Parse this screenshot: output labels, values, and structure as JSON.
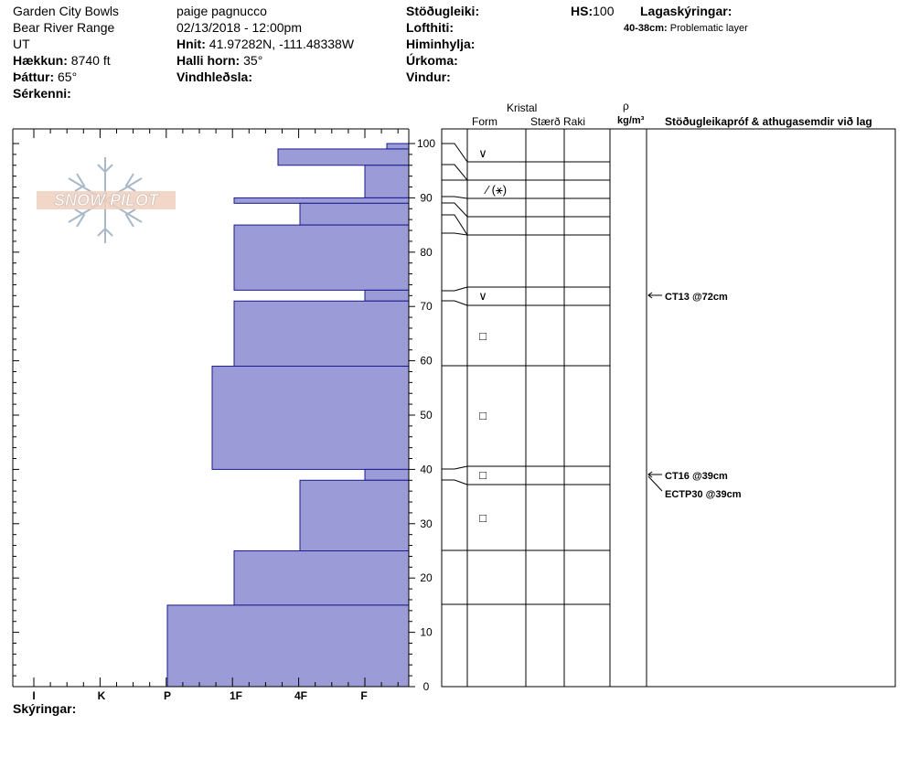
{
  "header": {
    "col1": [
      "Garden City Bowls",
      "Bear River Range",
      "UT"
    ],
    "elevation_label": "Hækkun:",
    "elevation_value": "8740 ft",
    "aspect_label": "Þáttur:",
    "aspect_value": "65°",
    "features_label": "Sérkenni:",
    "observer": "paige pagnucco",
    "datetime": "02/13/2018 - 12:00pm",
    "coords_label": "Hnit:",
    "coords_value": "41.97282N, -111.48338W",
    "slope_label": "Halli horn:",
    "slope_value": "35°",
    "wind_loading_label": "Vindhleðsla:",
    "stability_label": "Stöðugleiki:",
    "air_temp_label": "Lofthiti:",
    "sky_label": "Himinhylja:",
    "precip_label": "Úrkoma:",
    "wind_label": "Vindur:",
    "hs_label": "HS:",
    "hs_value": "100",
    "layer_notes_label": "Lagaskýringar:",
    "layer_note_range": "40-38cm:",
    "layer_note_text": "Problematic layer"
  },
  "logo": {
    "text": "SNOW PILOT"
  },
  "columns": {
    "crystal": "Kristal",
    "form": "Form",
    "size": "Stærð",
    "moisture": "Raki",
    "rho": "ρ",
    "density_unit": "kg/m³",
    "stability_notes": "Stöðugleikapróf & athugasemdir við lag"
  },
  "footer": {
    "notes_label": "Skýringar:"
  },
  "chart_data": {
    "type": "bar",
    "title": "",
    "xlabel": "",
    "ylabel": "",
    "ylim": [
      0,
      100
    ],
    "y_ticks": [
      "0",
      "10",
      "20",
      "30",
      "40",
      "50",
      "60",
      "70",
      "80",
      "90",
      "100"
    ],
    "hardness_scale": [
      "I",
      "K",
      "P",
      "1F",
      "4F",
      "F"
    ],
    "hardness_ticks_shown": [
      "I",
      "K",
      "P",
      "1F",
      "4F",
      "F"
    ],
    "hardness_layers": [
      {
        "top": 100,
        "bottom": 99,
        "hardness": "F+"
      },
      {
        "top": 99,
        "bottom": 96,
        "hardness": "4F-"
      },
      {
        "top": 96,
        "bottom": 90,
        "hardness": "F"
      },
      {
        "top": 90,
        "bottom": 89,
        "hardness": "1F"
      },
      {
        "top": 89,
        "bottom": 85,
        "hardness": "4F"
      },
      {
        "top": 85,
        "bottom": 73,
        "hardness": "1F"
      },
      {
        "top": 73,
        "bottom": 71,
        "hardness": "F"
      },
      {
        "top": 71,
        "bottom": 59,
        "hardness": "1F"
      },
      {
        "top": 59,
        "bottom": 40,
        "hardness": "1F-"
      },
      {
        "top": 40,
        "bottom": 38,
        "hardness": "F"
      },
      {
        "top": 38,
        "bottom": 25,
        "hardness": "4F"
      },
      {
        "top": 25,
        "bottom": 15,
        "hardness": "1F"
      },
      {
        "top": 15,
        "bottom": 0,
        "hardness": "P"
      }
    ],
    "layer_boundaries": [
      100,
      96,
      93,
      90,
      89,
      86,
      83,
      73,
      71,
      59,
      40,
      38,
      25,
      15
    ],
    "grain_symbols": [
      {
        "height": 98,
        "symbol": "∨"
      },
      {
        "height": 92,
        "symbol": "⁄ (⚹)"
      },
      {
        "height": 72,
        "symbol": "∨"
      },
      {
        "height": 65,
        "symbol": "□"
      },
      {
        "height": 50,
        "symbol": "□"
      },
      {
        "height": 39,
        "symbol": "□"
      },
      {
        "height": 31,
        "symbol": "□"
      }
    ],
    "tests": [
      {
        "height": 72,
        "label": "CT13 @72cm"
      },
      {
        "height": 39,
        "label": "CT16 @39cm"
      },
      {
        "height": 39,
        "label": "ECTP30 @39cm"
      }
    ]
  }
}
